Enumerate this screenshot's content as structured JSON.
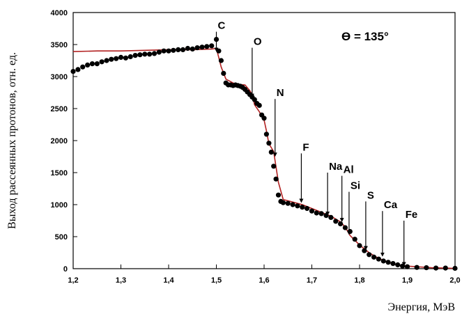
{
  "chart_data": {
    "type": "scatter",
    "xlabel": "Энергия, МэВ",
    "ylabel": "Выход рассеянных протонов, отн. ед.",
    "annotation": "ϴ = 135°",
    "xlim": [
      1.2,
      2.0
    ],
    "ylim": [
      0,
      4000
    ],
    "x_ticks": [
      "1,2",
      "1,3",
      "1,4",
      "1,5",
      "1,6",
      "1,7",
      "1,8",
      "1,9",
      "2,0"
    ],
    "y_ticks": [
      "0",
      "500",
      "1000",
      "1500",
      "2000",
      "2500",
      "3000",
      "3500",
      "4000"
    ],
    "element_edges": [
      {
        "label": "C",
        "x": 1.5,
        "y_top": 3700,
        "y_tip": 3420
      },
      {
        "label": "O",
        "x": 1.575,
        "y_top": 3450,
        "y_tip": 2700
      },
      {
        "label": "N",
        "x": 1.623,
        "y_top": 2650,
        "y_tip": 1780
      },
      {
        "label": "F",
        "x": 1.678,
        "y_top": 1800,
        "y_tip": 1060
      },
      {
        "label": "Na",
        "x": 1.733,
        "y_top": 1500,
        "y_tip": 860
      },
      {
        "label": "Al",
        "x": 1.763,
        "y_top": 1450,
        "y_tip": 760
      },
      {
        "label": "Si",
        "x": 1.778,
        "y_top": 1200,
        "y_tip": 560
      },
      {
        "label": "S",
        "x": 1.813,
        "y_top": 1050,
        "y_tip": 320
      },
      {
        "label": "Ca",
        "x": 1.848,
        "y_top": 900,
        "y_tip": 220
      },
      {
        "label": "Fe",
        "x": 1.893,
        "y_top": 750,
        "y_tip": 70
      }
    ],
    "series": [
      {
        "type": "scatter",
        "color": "#000000",
        "x": [
          1.2,
          1.21,
          1.22,
          1.23,
          1.24,
          1.25,
          1.26,
          1.27,
          1.28,
          1.29,
          1.3,
          1.31,
          1.32,
          1.33,
          1.34,
          1.35,
          1.36,
          1.37,
          1.38,
          1.39,
          1.4,
          1.41,
          1.42,
          1.43,
          1.44,
          1.45,
          1.46,
          1.47,
          1.48,
          1.49,
          1.5,
          1.505,
          1.51,
          1.515,
          1.52,
          1.525,
          1.53,
          1.535,
          1.54,
          1.545,
          1.55,
          1.555,
          1.56,
          1.565,
          1.57,
          1.575,
          1.58,
          1.585,
          1.59,
          1.595,
          1.6,
          1.605,
          1.61,
          1.615,
          1.62,
          1.625,
          1.63,
          1.635,
          1.64,
          1.65,
          1.66,
          1.67,
          1.68,
          1.69,
          1.7,
          1.71,
          1.72,
          1.73,
          1.74,
          1.75,
          1.76,
          1.77,
          1.78,
          1.79,
          1.8,
          1.81,
          1.82,
          1.83,
          1.84,
          1.85,
          1.86,
          1.87,
          1.88,
          1.89,
          1.9,
          1.92,
          1.94,
          1.96,
          1.98,
          2.0
        ],
        "y": [
          3080,
          3110,
          3150,
          3180,
          3200,
          3200,
          3230,
          3250,
          3270,
          3280,
          3300,
          3290,
          3310,
          3330,
          3340,
          3350,
          3350,
          3360,
          3380,
          3400,
          3400,
          3410,
          3420,
          3420,
          3440,
          3430,
          3450,
          3460,
          3470,
          3480,
          3580,
          3400,
          3250,
          3050,
          2900,
          2870,
          2870,
          2860,
          2870,
          2860,
          2850,
          2830,
          2800,
          2760,
          2720,
          2680,
          2640,
          2580,
          2550,
          2400,
          2350,
          2100,
          1960,
          1820,
          1600,
          1400,
          1150,
          1050,
          1030,
          1020,
          1000,
          980,
          960,
          940,
          900,
          870,
          860,
          830,
          800,
          740,
          700,
          640,
          580,
          460,
          360,
          280,
          220,
          180,
          150,
          120,
          100,
          80,
          60,
          40,
          30,
          20,
          15,
          10,
          10,
          5
        ]
      },
      {
        "type": "line",
        "color": "#b22222",
        "x": [
          1.2,
          1.25,
          1.3,
          1.35,
          1.4,
          1.45,
          1.49,
          1.5,
          1.505,
          1.51,
          1.52,
          1.54,
          1.56,
          1.57,
          1.575,
          1.58,
          1.59,
          1.6,
          1.605,
          1.61,
          1.62,
          1.63,
          1.64,
          1.66,
          1.68,
          1.7,
          1.72,
          1.74,
          1.76,
          1.77,
          1.78,
          1.8,
          1.82,
          1.84,
          1.86,
          1.88,
          1.9,
          1.95,
          2.0
        ],
        "y": [
          3390,
          3400,
          3400,
          3410,
          3420,
          3420,
          3430,
          3440,
          3300,
          3150,
          2960,
          2880,
          2870,
          2780,
          2720,
          2560,
          2450,
          2320,
          2150,
          1950,
          1830,
          1350,
          1080,
          1040,
          1000,
          940,
          880,
          820,
          730,
          650,
          520,
          370,
          250,
          160,
          100,
          60,
          40,
          15,
          5
        ]
      }
    ]
  }
}
